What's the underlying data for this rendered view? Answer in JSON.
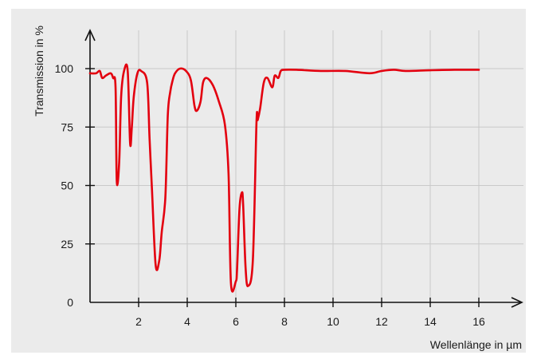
{
  "chart_data": {
    "type": "line",
    "xlabel": "Wellenlänge in µm",
    "ylabel": "Transmission in %",
    "x_ticks": [
      2,
      4,
      6,
      8,
      10,
      12,
      14,
      16
    ],
    "y_ticks": [
      0,
      25,
      50,
      75,
      100
    ],
    "xlim": [
      0,
      18.5
    ],
    "ylim": [
      0,
      115
    ],
    "grid": true,
    "series": [
      {
        "color": "#e3000f",
        "x": [
          0.0,
          0.25,
          0.4,
          0.5,
          0.65,
          0.85,
          0.95,
          1.05,
          1.1,
          1.2,
          1.28,
          1.4,
          1.55,
          1.65,
          1.72,
          1.8,
          1.95,
          2.1,
          2.35,
          2.45,
          2.55,
          2.7,
          2.85,
          2.95,
          3.1,
          3.2,
          3.3,
          3.4,
          3.5,
          3.7,
          3.95,
          4.15,
          4.3,
          4.4,
          4.55,
          4.65,
          4.8,
          5.05,
          5.3,
          5.55,
          5.7,
          5.8,
          6.0,
          6.05,
          6.15,
          6.25,
          6.3,
          6.4,
          6.5,
          6.7,
          6.85,
          6.9,
          7.0,
          7.15,
          7.3,
          7.5,
          7.6,
          7.75,
          7.85,
          8.0,
          8.5,
          9.5,
          10.5,
          11.5,
          12.0,
          12.5,
          13.0,
          14.0,
          15.0,
          16.0
        ],
        "y": [
          98,
          98,
          99,
          96,
          97,
          98,
          96,
          92,
          52,
          60,
          88,
          99,
          99,
          68,
          75,
          88,
          98,
          99,
          94,
          70,
          48,
          16,
          18,
          30,
          45,
          80,
          90,
          95,
          98,
          100,
          99,
          95,
          84,
          82,
          86,
          94,
          96,
          93,
          86,
          76,
          55,
          8,
          9,
          14,
          40,
          47,
          42,
          15,
          7,
          18,
          77,
          78,
          83,
          94,
          96,
          92,
          97,
          96,
          99,
          99.5,
          99.5,
          99,
          99,
          98,
          99,
          99.5,
          99,
          99.3,
          99.5,
          99.5
        ]
      }
    ]
  }
}
